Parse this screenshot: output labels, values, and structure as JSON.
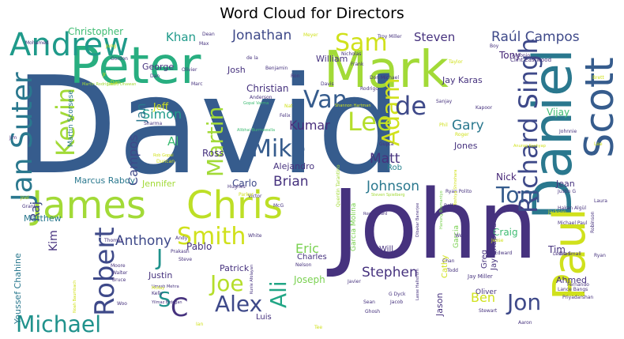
{
  "title": "Word Cloud for Directors",
  "palette": "viridis",
  "words": [
    {
      "text": "David",
      "color": "#365c8d"
    },
    {
      "text": "Michael",
      "color": "#20928c"
    },
    {
      "text": "John",
      "color": "#46327e"
    },
    {
      "text": "Peter",
      "color": "#28ae80"
    },
    {
      "text": "Mark",
      "color": "#a2da37"
    },
    {
      "text": "Daniel",
      "color": "#2a788e"
    },
    {
      "text": "Paul",
      "color": "#d0e11c"
    },
    {
      "text": "Scott",
      "color": "#365c8d"
    },
    {
      "text": "James",
      "color": "#a2da37"
    },
    {
      "text": "Chris",
      "color": "#bddf26"
    },
    {
      "text": "Andrew",
      "color": "#1f9a8a"
    },
    {
      "text": "Robert",
      "color": "#3e4989"
    },
    {
      "text": "Richard Singh",
      "color": "#3e4989"
    },
    {
      "text": "Jan Suter",
      "color": "#2a788e"
    },
    {
      "text": "Kevin",
      "color": "#a2da37"
    },
    {
      "text": "Smith",
      "color": "#d0e11c"
    },
    {
      "text": "Martin",
      "color": "#a2da37"
    },
    {
      "text": "Mike",
      "color": "#365c8d"
    },
    {
      "text": "Lee",
      "color": "#b5de2b"
    },
    {
      "text": "Adam",
      "color": "#d0e11c"
    },
    {
      "text": "Van",
      "color": "#365c8d"
    },
    {
      "text": "de",
      "color": "#3e4989"
    },
    {
      "text": "Sam",
      "color": "#d0e11c"
    },
    {
      "text": "Tom",
      "color": "#365c8d"
    },
    {
      "text": "Alex",
      "color": "#3e4989"
    },
    {
      "text": "Joe",
      "color": "#b5de2b"
    },
    {
      "text": "Ali",
      "color": "#21a685"
    },
    {
      "text": "Jon",
      "color": "#3e4989"
    },
    {
      "text": "C",
      "color": "#46327e"
    },
    {
      "text": "J",
      "color": "#20928c"
    },
    {
      "text": "S",
      "color": "#20928c"
    },
    {
      "text": "Jonathan",
      "color": "#3e4989"
    },
    {
      "text": "Raúl Campos",
      "color": "#3e4989"
    },
    {
      "text": "Steven",
      "color": "#46327e"
    },
    {
      "text": "Khan",
      "color": "#1f9a8a"
    },
    {
      "text": "Kumar",
      "color": "#472d7b"
    },
    {
      "text": "Gary",
      "color": "#2a788e"
    },
    {
      "text": "Matt",
      "color": "#46327e"
    },
    {
      "text": "Brian",
      "color": "#46327e"
    },
    {
      "text": "Johnson",
      "color": "#2a788e"
    },
    {
      "text": "Anthony",
      "color": "#3e4989"
    },
    {
      "text": "Stephen",
      "color": "#46327e"
    },
    {
      "text": "Eric",
      "color": "#7ad151"
    },
    {
      "text": "Ben",
      "color": "#d0e11c"
    },
    {
      "text": "Craig",
      "color": "#3fbc73"
    },
    {
      "text": "Christopher",
      "color": "#3fbc73"
    },
    {
      "text": "Simon",
      "color": "#1f9a8a"
    },
    {
      "text": "Jan",
      "color": "#2a788e"
    },
    {
      "text": "Campos",
      "color": "#3e4989"
    },
    {
      "text": "Al",
      "color": "#3fbc73"
    },
    {
      "text": "Raj",
      "color": "#3e4989"
    },
    {
      "text": "Kim",
      "color": "#46327e"
    },
    {
      "text": "Jeff",
      "color": "#d0e11c"
    },
    {
      "text": "Christian",
      "color": "#46327e"
    },
    {
      "text": "Jay Karas",
      "color": "#46327e"
    },
    {
      "text": "Tony",
      "color": "#482878"
    },
    {
      "text": "Vijay",
      "color": "#3fbc73"
    },
    {
      "text": "Tim",
      "color": "#46327e"
    },
    {
      "text": "Jones",
      "color": "#46327e"
    },
    {
      "text": "Nick",
      "color": "#482878"
    },
    {
      "text": "Rob",
      "color": "#26828e"
    },
    {
      "text": "Alejandro",
      "color": "#46327e"
    },
    {
      "text": "Ross",
      "color": "#46327e"
    },
    {
      "text": "Carlo",
      "color": "#3e4989"
    },
    {
      "text": "George",
      "color": "#46327e"
    },
    {
      "text": "Josh",
      "color": "#46327e"
    },
    {
      "text": "William",
      "color": "#46327e"
    },
    {
      "text": "Patrick",
      "color": "#46327e"
    },
    {
      "text": "Justin",
      "color": "#46327e"
    },
    {
      "text": "Pablo",
      "color": "#46327e"
    },
    {
      "text": "Charles",
      "color": "#46327e"
    },
    {
      "text": "Will",
      "color": "#46327e"
    },
    {
      "text": "Jean",
      "color": "#46327e"
    },
    {
      "text": "Ahmed",
      "color": "#46327e"
    },
    {
      "text": "Joseph",
      "color": "#7ad151"
    },
    {
      "text": "Luis",
      "color": "#46327e"
    },
    {
      "text": "Matthew",
      "color": "#2a788e"
    },
    {
      "text": "Marcus Raboy",
      "color": "#2a788e"
    },
    {
      "text": "Jennifer",
      "color": "#a2da37"
    },
    {
      "text": "Youssef Chahine",
      "color": "#2a788e"
    },
    {
      "text": "Martin Scorsese",
      "color": "#2a788e"
    },
    {
      "text": "Greg",
      "color": "#46327e"
    },
    {
      "text": "Jay Chapman",
      "color": "#46327e"
    },
    {
      "text": "Jason",
      "color": "#46327e"
    },
    {
      "text": "Cathy",
      "color": "#d0e11c"
    },
    {
      "text": "Garcia",
      "color": "#7ad151"
    },
    {
      "text": "Garcia Molina",
      "color": "#7ad151"
    },
    {
      "text": "Oliver",
      "color": "#46327e"
    },
    {
      "text": "Mohamed",
      "color": "#46327e"
    },
    {
      "text": "Troy Miller",
      "color": "#46327e"
    },
    {
      "text": "Clint Eastwood",
      "color": "#46327e"
    },
    {
      "text": "Jay Miller",
      "color": "#46327e"
    },
    {
      "text": "Quentin Tarantino",
      "color": "#a2da37"
    },
    {
      "text": "Steven Spielberg",
      "color": "#a2da37"
    },
    {
      "text": "Ryan Polito",
      "color": "#46327e"
    },
    {
      "text": "Hakan Algül",
      "color": "#46327e"
    },
    {
      "text": "Michael Paul",
      "color": "#46327e"
    },
    {
      "text": "Leslie Small",
      "color": "#46327e"
    },
    {
      "text": "Lance Bangs",
      "color": "#46327e"
    },
    {
      "text": "Fernando",
      "color": "#46327e"
    },
    {
      "text": "Priyadarshan",
      "color": "#46327e"
    },
    {
      "text": "Umesh Mehra",
      "color": "#46327e"
    },
    {
      "text": "Yilmaz Erdoğan",
      "color": "#46327e"
    },
    {
      "text": "Kunle Afolayan",
      "color": "#46327e"
    },
    {
      "text": "David Dhawan",
      "color": "#a2da37"
    },
    {
      "text": "Gopal Varma",
      "color": "#3fbc73"
    },
    {
      "text": "Alibhai Burmawalla",
      "color": "#3fbc73"
    },
    {
      "text": "Shannon Hartman",
      "color": "#d0e11c"
    },
    {
      "text": "Dibakar Banerjee",
      "color": "#46327e"
    },
    {
      "text": "Hanung Bramantyo",
      "color": "#7ad151"
    },
    {
      "text": "Toshiya Shinohara",
      "color": "#d0e11c"
    },
    {
      "text": "Lasse Hallström",
      "color": "#46327e"
    },
    {
      "text": "Noah Baumbach",
      "color": "#d0e11c"
    },
    {
      "text": "Anurag Kashyap",
      "color": "#d0e11c"
    },
    {
      "text": "Ron Howard",
      "color": "#46327e"
    },
    {
      "text": "Don Michael",
      "color": "#46327e"
    },
    {
      "text": "Rodrigo",
      "color": "#46327e"
    },
    {
      "text": "Nicholas",
      "color": "#46327e"
    },
    {
      "text": "Benjamin",
      "color": "#46327e"
    },
    {
      "text": "Olivier",
      "color": "#46327e"
    },
    {
      "text": "Anderson",
      "color": "#46327e"
    },
    {
      "text": "Martin Rodriguez",
      "color": "#a2da37"
    },
    {
      "text": "Rob Gopal",
      "color": "#d0e11c"
    },
    {
      "text": "Duncan",
      "color": "#d0e11c"
    },
    {
      "text": "Hughes",
      "color": "#46327e"
    },
    {
      "text": "Victor",
      "color": "#46327e"
    },
    {
      "text": "Parker",
      "color": "#d0e11c"
    },
    {
      "text": "Prakash",
      "color": "#46327e"
    },
    {
      "text": "White",
      "color": "#46327e"
    },
    {
      "text": "Andy",
      "color": "#46327e"
    },
    {
      "text": "Thomas",
      "color": "#46327e"
    },
    {
      "text": "Moore",
      "color": "#46327e"
    },
    {
      "text": "Walter",
      "color": "#46327e"
    },
    {
      "text": "Bruce",
      "color": "#46327e"
    },
    {
      "text": "McKay",
      "color": "#d0e11c"
    },
    {
      "text": "Kelly",
      "color": "#46327e"
    },
    {
      "text": "Woo",
      "color": "#46327e"
    },
    {
      "text": "Steve",
      "color": "#46327e"
    },
    {
      "text": "Javier",
      "color": "#46327e"
    },
    {
      "text": "Sean",
      "color": "#46327e"
    },
    {
      "text": "Jacob",
      "color": "#46327e"
    },
    {
      "text": "Ghosh",
      "color": "#46327e"
    },
    {
      "text": "Stewart",
      "color": "#46327e"
    },
    {
      "text": "Aaron",
      "color": "#46327e"
    },
    {
      "text": "G Dyck",
      "color": "#46327e"
    },
    {
      "text": "Chan",
      "color": "#46327e"
    },
    {
      "text": "Edward",
      "color": "#46327e"
    },
    {
      "text": "Todd",
      "color": "#46327e"
    },
    {
      "text": "Jesse",
      "color": "#d0e11c"
    },
    {
      "text": "Nelson",
      "color": "#46327e"
    },
    {
      "text": "Weitz",
      "color": "#46327e"
    },
    {
      "text": "Bell",
      "color": "#46327e"
    },
    {
      "text": "Robinson",
      "color": "#46327e"
    },
    {
      "text": "Ryan",
      "color": "#46327e"
    },
    {
      "text": "Brad",
      "color": "#46327e"
    },
    {
      "text": "Laura",
      "color": "#46327e"
    },
    {
      "text": "Jackson",
      "color": "#d0e11c"
    },
    {
      "text": "Justin G",
      "color": "#46327e"
    },
    {
      "text": "Johnnie",
      "color": "#46327e"
    },
    {
      "text": "Kapoor",
      "color": "#46327e"
    },
    {
      "text": "Sanjay",
      "color": "#46327e"
    },
    {
      "text": "Roger",
      "color": "#d0e11c"
    },
    {
      "text": "Phil",
      "color": "#d0e11c"
    },
    {
      "text": "Gupta",
      "color": "#46327e"
    },
    {
      "text": "Brett",
      "color": "#d0e11c"
    },
    {
      "text": "Antonio",
      "color": "#46327e"
    },
    {
      "text": "Boy",
      "color": "#46327e"
    },
    {
      "text": "Taylor",
      "color": "#d0e11c"
    },
    {
      "text": "Frank",
      "color": "#46327e"
    },
    {
      "text": "Meyer",
      "color": "#d0e11c"
    },
    {
      "text": "Dean",
      "color": "#46327e"
    },
    {
      "text": "Max",
      "color": "#46327e"
    },
    {
      "text": "de la",
      "color": "#46327e"
    },
    {
      "text": "Ron",
      "color": "#46327e"
    },
    {
      "text": "Davis",
      "color": "#46327e"
    },
    {
      "text": "Marc",
      "color": "#46327e"
    },
    {
      "text": "Dan",
      "color": "#46327e"
    },
    {
      "text": "Gordon",
      "color": "#46327e"
    },
    {
      "text": "Jung",
      "color": "#d0e11c"
    },
    {
      "text": "Jim",
      "color": "#46327e"
    },
    {
      "text": "Felix",
      "color": "#46327e"
    },
    {
      "text": "Sharma",
      "color": "#46327e"
    },
    {
      "text": "Grant",
      "color": "#46327e"
    },
    {
      "text": "Joel",
      "color": "#d0e11c"
    },
    {
      "text": "Dan",
      "color": "#d0e11c"
    },
    {
      "text": "Lee",
      "color": "#d0e11c"
    },
    {
      "text": "McG",
      "color": "#46327e"
    },
    {
      "text": "Jr",
      "color": "#d0e11c"
    },
    {
      "text": "Ian",
      "color": "#d0e11c"
    },
    {
      "text": "Nat",
      "color": "#d0e11c"
    },
    {
      "text": "Tee",
      "color": "#d0e11c"
    }
  ]
}
